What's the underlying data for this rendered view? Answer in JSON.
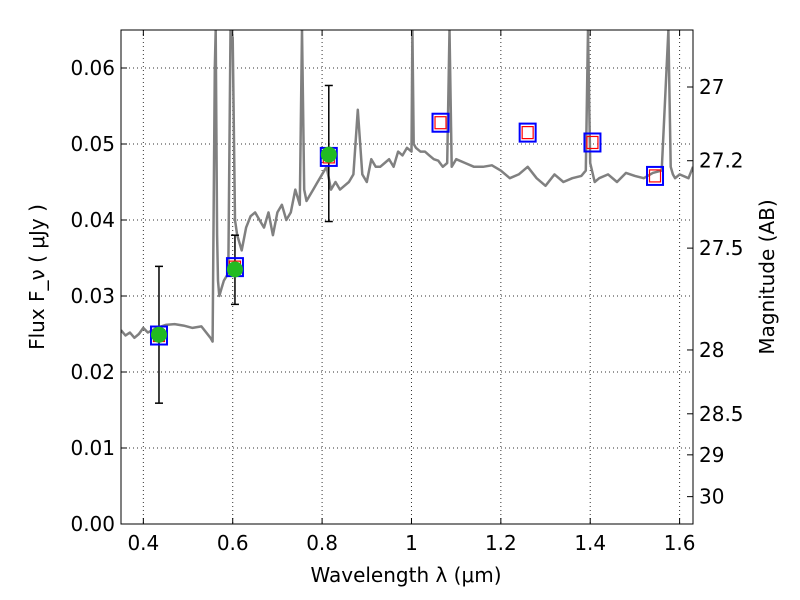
{
  "chart_data": {
    "type": "line",
    "xlabel": "Wavelength  λ (μm)",
    "ylabel": "Flux  F_ν  ( μJy )",
    "y2label": "Magnitude (AB)",
    "xlim": [
      0.35,
      1.63
    ],
    "ylim": [
      0.0,
      0.065
    ],
    "grid": true,
    "x_ticks": [
      0.4,
      0.6,
      0.8,
      1.0,
      1.2,
      1.4,
      1.6
    ],
    "x_tick_labels": [
      "0.4",
      "0.6",
      "0.8",
      "1",
      "1.2",
      "1.4",
      "1.6"
    ],
    "y_ticks": [
      0.0,
      0.01,
      0.02,
      0.03,
      0.04,
      0.05,
      0.06
    ],
    "y_tick_labels": [
      "0.00",
      "0.01",
      "0.02",
      "0.03",
      "0.04",
      "0.05",
      "0.06"
    ],
    "y2_ticks": [
      {
        "label": "27",
        "flux": 0.0575
      },
      {
        "label": "27.2",
        "flux": 0.0478
      },
      {
        "label": "27.5",
        "flux": 0.0363
      },
      {
        "label": "28",
        "flux": 0.0229
      },
      {
        "label": "28.5",
        "flux": 0.0145
      },
      {
        "label": "29",
        "flux": 0.0091
      },
      {
        "label": "30",
        "flux": 0.0036
      }
    ],
    "colors": {
      "sed_line": "#808080",
      "observed_point": "#22bb22",
      "model_square_outer": "#0000ff",
      "model_square_inner": "#ff0000",
      "errorbar": "#000000"
    },
    "series": [
      {
        "type": "line",
        "x": [
          0.35,
          0.36,
          0.37,
          0.38,
          0.39,
          0.4,
          0.41,
          0.42,
          0.43,
          0.44,
          0.45,
          0.47,
          0.49,
          0.51,
          0.53,
          0.55,
          0.555,
          0.56,
          0.562,
          0.565,
          0.567,
          0.57,
          0.575,
          0.58,
          0.59,
          0.595,
          0.6,
          0.605,
          0.61,
          0.62,
          0.63,
          0.64,
          0.65,
          0.66,
          0.67,
          0.68,
          0.69,
          0.7,
          0.71,
          0.72,
          0.73,
          0.74,
          0.75,
          0.755,
          0.76,
          0.765,
          0.77,
          0.78,
          0.79,
          0.8,
          0.81,
          0.82,
          0.83,
          0.84,
          0.85,
          0.86,
          0.87,
          0.88,
          0.89,
          0.9,
          0.91,
          0.92,
          0.93,
          0.94,
          0.95,
          0.96,
          0.97,
          0.98,
          0.99,
          1.0,
          1.002,
          1.005,
          1.01,
          1.02,
          1.03,
          1.04,
          1.05,
          1.06,
          1.07,
          1.08,
          1.085,
          1.09,
          1.1,
          1.12,
          1.14,
          1.16,
          1.18,
          1.2,
          1.22,
          1.24,
          1.26,
          1.28,
          1.3,
          1.32,
          1.34,
          1.36,
          1.38,
          1.39,
          1.395,
          1.4,
          1.41,
          1.42,
          1.44,
          1.46,
          1.48,
          1.5,
          1.52,
          1.54,
          1.56,
          1.575,
          1.58,
          1.585,
          1.59,
          1.6,
          1.62,
          1.63
        ],
        "y": [
          0.0255,
          0.0248,
          0.0252,
          0.0245,
          0.025,
          0.0258,
          0.0252,
          0.0255,
          0.0258,
          0.026,
          0.0262,
          0.0263,
          0.0261,
          0.0258,
          0.026,
          0.0245,
          0.024,
          0.06,
          0.065,
          0.038,
          0.032,
          0.03,
          0.031,
          0.032,
          0.033,
          0.065,
          0.064,
          0.04,
          0.038,
          0.036,
          0.039,
          0.0405,
          0.041,
          0.04,
          0.039,
          0.041,
          0.038,
          0.041,
          0.042,
          0.04,
          0.041,
          0.044,
          0.042,
          0.065,
          0.044,
          0.0425,
          0.043,
          0.044,
          0.045,
          0.046,
          0.047,
          0.044,
          0.045,
          0.044,
          0.0445,
          0.045,
          0.046,
          0.0545,
          0.046,
          0.045,
          0.048,
          0.047,
          0.047,
          0.0475,
          0.048,
          0.047,
          0.049,
          0.0485,
          0.0495,
          0.049,
          0.065,
          0.05,
          0.0495,
          0.049,
          0.049,
          0.0485,
          0.048,
          0.0478,
          0.047,
          0.0475,
          0.065,
          0.047,
          0.048,
          0.0475,
          0.047,
          0.047,
          0.0472,
          0.0465,
          0.0455,
          0.046,
          0.047,
          0.0455,
          0.0445,
          0.046,
          0.045,
          0.0455,
          0.0458,
          0.0465,
          0.065,
          0.0475,
          0.045,
          0.0455,
          0.046,
          0.045,
          0.0462,
          0.0458,
          0.0455,
          0.0462,
          0.0465,
          0.065,
          0.047,
          0.046,
          0.0455,
          0.046,
          0.0455,
          0.047
        ]
      },
      {
        "type": "errorbar",
        "name": "",
        "x": [
          0.435,
          0.605,
          0.815
        ],
        "y": [
          0.0249,
          0.0335,
          0.0486
        ],
        "yerr_low": [
          0.0159,
          0.0289,
          0.0398
        ],
        "yerr_high": [
          0.0339,
          0.038,
          0.0577
        ]
      },
      {
        "type": "scatter",
        "name": "",
        "x": [
          0.435,
          0.605,
          0.815,
          1.065,
          1.26,
          1.405,
          1.545
        ],
        "y": [
          0.0248,
          0.0338,
          0.0483,
          0.0528,
          0.0515,
          0.0502,
          0.0458
        ]
      }
    ]
  }
}
